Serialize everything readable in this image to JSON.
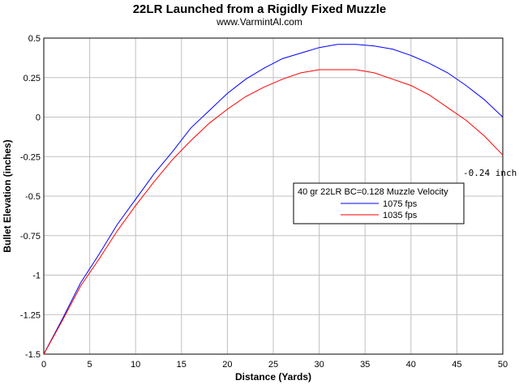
{
  "chart_data": {
    "type": "line",
    "title": "22LR Launched from a Rigidly Fixed Muzzle",
    "subtitle": "www.VarmintAl.com",
    "xlabel": "Distance (Yards)",
    "ylabel": "Bullet Elevation (inches)",
    "xlim": [
      0,
      50
    ],
    "ylim": [
      -1.5,
      0.5
    ],
    "x_ticks": [
      0,
      5,
      10,
      15,
      20,
      25,
      30,
      35,
      40,
      45,
      50
    ],
    "y_ticks": [
      0.5,
      0.25,
      0,
      -0.25,
      -0.5,
      -0.75,
      -1,
      -1.25,
      -1.5
    ],
    "y_tick_labels": [
      "0.5",
      "0.25",
      "0",
      "-0.25",
      "-0.5",
      "-0.75",
      "-1",
      "-1.25",
      "-1.5"
    ],
    "grid": true,
    "legend_title": "40 gr 22LR BC=0.128 Muzzle Velocity",
    "legend_position": "center-right",
    "annotation": "-0.24 inch",
    "series": [
      {
        "name": "1075 fps",
        "color": "#0000ff",
        "x": [
          0,
          2,
          4,
          6,
          8,
          10,
          12,
          14,
          16,
          18,
          20,
          22,
          24,
          26,
          28,
          30,
          32,
          34,
          36,
          38,
          40,
          42,
          44,
          46,
          48,
          50
        ],
        "y": [
          -1.5,
          -1.28,
          -1.05,
          -0.87,
          -0.68,
          -0.52,
          -0.36,
          -0.22,
          -0.07,
          0.04,
          0.15,
          0.24,
          0.31,
          0.37,
          0.405,
          0.44,
          0.46,
          0.46,
          0.45,
          0.43,
          0.39,
          0.34,
          0.28,
          0.2,
          0.11,
          0.0
        ]
      },
      {
        "name": "1035 fps",
        "color": "#ff0000",
        "x": [
          0,
          2,
          4,
          6,
          8,
          10,
          12,
          14,
          16,
          18,
          20,
          22,
          24,
          26,
          28,
          30,
          32,
          34,
          36,
          38,
          40,
          42,
          44,
          46,
          48,
          50
        ],
        "y": [
          -1.5,
          -1.29,
          -1.07,
          -0.9,
          -0.72,
          -0.56,
          -0.41,
          -0.27,
          -0.15,
          -0.04,
          0.05,
          0.13,
          0.19,
          0.24,
          0.28,
          0.3,
          0.3,
          0.3,
          0.28,
          0.24,
          0.2,
          0.14,
          0.06,
          -0.02,
          -0.12,
          -0.24
        ]
      }
    ]
  }
}
